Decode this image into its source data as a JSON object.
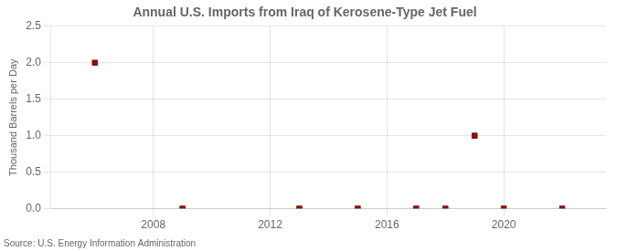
{
  "chart_data": {
    "type": "scatter",
    "title": "Annual U.S. Imports from Iraq of Kerosene-Type Jet Fuel",
    "ylabel": "Thousand Barrels per Day",
    "source": "Source: U.S. Energy Information Administration",
    "x": [
      2006,
      2009,
      2013,
      2015,
      2017,
      2018,
      2019,
      2020,
      2022
    ],
    "values": [
      2.0,
      0.0,
      0.0,
      0.0,
      0.0,
      0.0,
      1.0,
      0.0,
      0.0
    ],
    "color": "#8b1010",
    "marker": "square",
    "xlim": [
      2004.5,
      2023.5
    ],
    "ylim": [
      0,
      2.5
    ],
    "xticks": [
      2008,
      2012,
      2016,
      2020
    ],
    "yticks": [
      {
        "value": 0.0,
        "label": "0.0"
      },
      {
        "value": 0.5,
        "label": "0.5"
      },
      {
        "value": 1.0,
        "label": "1.0"
      },
      {
        "value": 1.5,
        "label": "1.5"
      },
      {
        "value": 2.0,
        "label": "2.0"
      },
      {
        "value": 2.5,
        "label": "2.5"
      }
    ],
    "grid": true
  }
}
